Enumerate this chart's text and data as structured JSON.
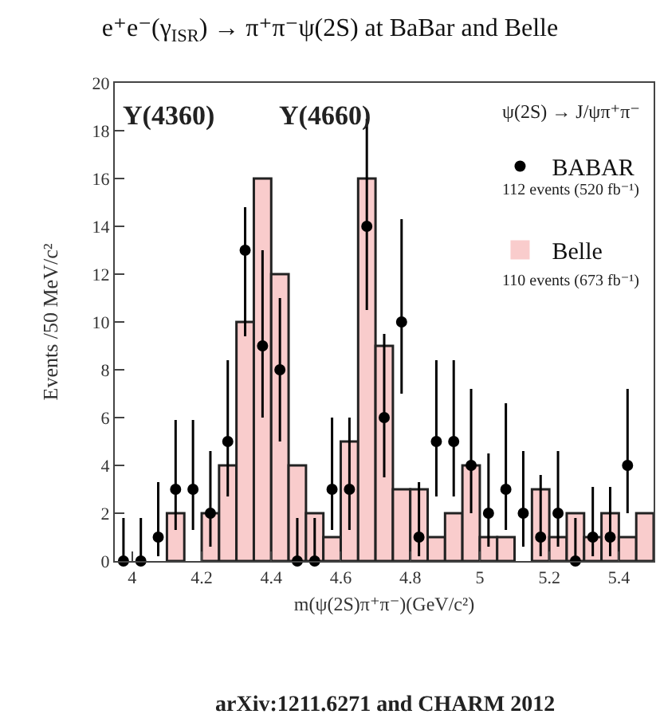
{
  "chart_data": {
    "type": "histogram",
    "title": "e⁺e⁻(γ$_{ISR}$) → π⁺π⁻ψ(2S) at BaBar and Belle",
    "xlabel": "m(ψ(2S)π⁺π⁻)(GeV/c²)",
    "ylabel": "Events /50 MeV/c²",
    "bins": [
      3.95,
      4.0,
      4.05,
      4.1,
      4.15,
      4.2,
      4.25,
      4.3,
      4.35,
      4.4,
      4.45,
      4.5,
      4.55,
      4.6,
      4.65,
      4.7,
      4.75,
      4.8,
      4.85,
      4.9,
      4.95,
      5.0,
      5.05,
      5.1,
      5.15,
      5.2,
      5.25,
      5.3,
      5.35,
      5.4,
      5.45,
      5.5
    ],
    "series": [
      {
        "name": "Belle",
        "color": "#f9cccc",
        "values": [
          0,
          0,
          0,
          2,
          0,
          2,
          4,
          10,
          16,
          12,
          4,
          2,
          1,
          5,
          16,
          9,
          3,
          3,
          1,
          2,
          4,
          1,
          1,
          0,
          3,
          1,
          2,
          1,
          2,
          1,
          2
        ]
      },
      {
        "type": "scatter",
        "name": "BABAR",
        "color": "#000000",
        "x": [
          3.975,
          4.025,
          4.075,
          4.125,
          4.175,
          4.225,
          4.275,
          4.325,
          4.375,
          4.425,
          4.475,
          4.525,
          4.575,
          4.625,
          4.675,
          4.725,
          4.775,
          4.825,
          4.875,
          4.925,
          4.975,
          5.025,
          5.075,
          5.125,
          5.175,
          5.225,
          5.275,
          5.325,
          5.375,
          5.425
        ],
        "values": [
          0,
          0,
          1,
          3,
          3,
          2,
          5,
          13,
          9,
          8,
          0,
          0,
          3,
          3,
          14,
          6,
          10,
          1,
          5,
          5,
          4,
          2,
          3,
          2,
          1,
          2,
          0,
          1,
          1,
          4
        ],
        "errors": [
          [
            0,
            1.8
          ],
          [
            0,
            1.8
          ],
          [
            0.2,
            3.3
          ],
          [
            1.3,
            5.9
          ],
          [
            1.3,
            5.9
          ],
          [
            0.6,
            4.6
          ],
          [
            2.7,
            8.4
          ],
          [
            9.4,
            14.8
          ],
          [
            6,
            13
          ],
          [
            5,
            11
          ],
          [
            0,
            1.8
          ],
          [
            0,
            1.8
          ],
          [
            1.3,
            6
          ],
          [
            1.3,
            6
          ],
          [
            10.5,
            18.5
          ],
          [
            3.5,
            9.5
          ],
          [
            7,
            14.3
          ],
          [
            0.2,
            3.3
          ],
          [
            2.7,
            8.4
          ],
          [
            2.7,
            8.4
          ],
          [
            2,
            7.2
          ],
          [
            0.6,
            4.5
          ],
          [
            1.3,
            6.6
          ],
          [
            0.6,
            4.6
          ],
          [
            0.2,
            3.6
          ],
          [
            0.6,
            4.6
          ],
          [
            0,
            1.8
          ],
          [
            0.2,
            3.1
          ],
          [
            0.2,
            3.1
          ],
          [
            2,
            7.2
          ]
        ]
      }
    ],
    "marker": "circle",
    "xlim": [
      3.95,
      5.5
    ],
    "ylim": [
      0,
      20
    ],
    "xticks": [
      4,
      4.2,
      4.4,
      4.6,
      4.8,
      5,
      5.2,
      5.4
    ],
    "yticks": [
      0,
      2,
      4,
      6,
      8,
      10,
      12,
      14,
      16,
      18,
      20
    ],
    "grid": false,
    "legend": "top right",
    "annotations": [
      "Y(4360)",
      "Y(4660)",
      "ψ(2S) → J/ψπ⁺π⁻",
      "112 events (520 fb⁻¹)",
      "110 events (673 fb⁻¹)",
      "arXiv:1211.6271 and CHARM 2012"
    ]
  }
}
